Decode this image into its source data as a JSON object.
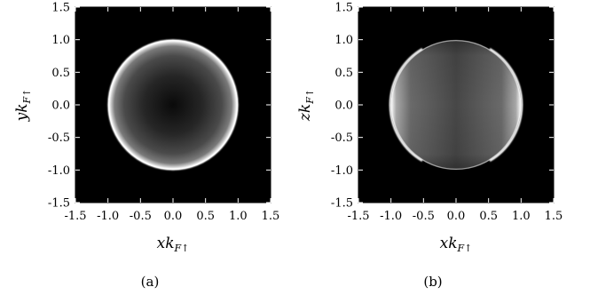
{
  "chart_data": [
    {
      "type": "heatmap",
      "panel_label": "(a)",
      "xlabel": "xk",
      "xlabel_sub": "F↑",
      "ylabel": "yk",
      "ylabel_sub": "F↑",
      "xlim": [
        -1.5,
        1.5
      ],
      "ylim": [
        -1.5,
        1.5
      ],
      "xticks": [
        "-1.5",
        "-1.0",
        "-0.5",
        "0.0",
        "0.5",
        "1.0",
        "1.5"
      ],
      "yticks": [
        "-1.5",
        "-1.0",
        "-0.5",
        "0.0",
        "0.5",
        "1.0",
        "1.5"
      ],
      "tick_values": [
        -1.5,
        -1.0,
        -0.5,
        0.0,
        0.5,
        1.0,
        1.5
      ],
      "disk_radius": 1.0,
      "background_color": "#000000",
      "rim_color": "#ffffff",
      "center_color": "#111111",
      "pattern": "radial brightening toward rim"
    },
    {
      "type": "heatmap",
      "panel_label": "(b)",
      "xlabel": "xk",
      "xlabel_sub": "F↑",
      "ylabel": "zk",
      "ylabel_sub": "F↑",
      "xlim": [
        -1.5,
        1.5
      ],
      "ylim": [
        -1.5,
        1.5
      ],
      "xticks": [
        "-1.5",
        "-1.0",
        "-0.5",
        "0.0",
        "0.5",
        "1.0",
        "1.5"
      ],
      "yticks": [
        "-1.5",
        "-1.0",
        "-0.5",
        "0.0",
        "0.5",
        "1.0",
        "1.5"
      ],
      "tick_values": [
        -1.5,
        -1.0,
        -0.5,
        0.0,
        0.5,
        1.0,
        1.5
      ],
      "disk_radius": 1.0,
      "background_color": "#000000",
      "rim_color": "#ffffff",
      "center_color": "#4a4a4a",
      "pattern": "bright at left/right rim, dim at top/bottom"
    }
  ]
}
